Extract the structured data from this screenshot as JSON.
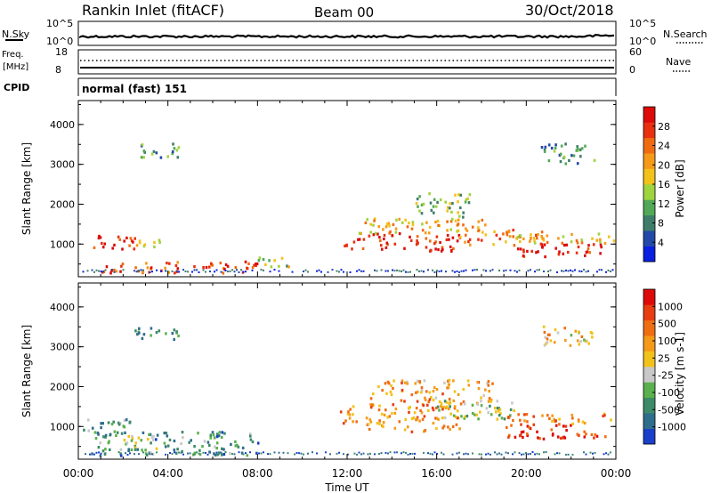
{
  "header": {
    "station": "Rankin Inlet (fitACF)",
    "beam": "Beam 00",
    "date": "30/Oct/2018"
  },
  "noise_panel": {
    "left_label": "N.Sky",
    "right_label": "N.Search",
    "y_ticks_left": [
      "10^5",
      "10^0"
    ],
    "y_ticks_right": [
      "10^5",
      "10^0"
    ]
  },
  "freq_panel": {
    "left_label_1": "Freq.",
    "left_label_2": "[MHz]",
    "right_label": "Nave",
    "y_ticks_left": [
      "18",
      "8"
    ],
    "y_ticks_right": [
      "60",
      "0"
    ]
  },
  "cpid": {
    "label": "CPID",
    "value": "normal (fast) 151"
  },
  "x_axis": {
    "label": "Time UT",
    "ticks": [
      "00:00",
      "04:00",
      "08:00",
      "12:00",
      "16:00",
      "20:00",
      "00:00"
    ]
  },
  "chart_data": [
    {
      "type": "heatmap",
      "name": "power",
      "ylabel": "Slant Range [km]",
      "yticks": [
        1000,
        2000,
        3000,
        4000
      ],
      "ylim": [
        180,
        4600
      ],
      "xlim_hours": [
        0,
        24
      ],
      "colorbar": {
        "label": "Power [dB]",
        "ticks": [
          "4",
          "8",
          "12",
          "16",
          "20",
          "24",
          "28"
        ],
        "colors": [
          "#0a1fe0",
          "#2348a8",
          "#3f7d6a",
          "#52a857",
          "#9ed43d",
          "#f2c21a",
          "#f59a18",
          "#f06a10",
          "#e83010",
          "#dd0a0a"
        ]
      },
      "regions": [
        {
          "h0": 0.2,
          "h1": 2.5,
          "r0": 900,
          "r1": 1250,
          "level": 0.88
        },
        {
          "h0": 2.5,
          "h1": 4.2,
          "r0": 950,
          "r1": 1150,
          "level": 0.55
        },
        {
          "h0": 1.0,
          "h1": 8.0,
          "r0": 300,
          "r1": 600,
          "level": 0.82
        },
        {
          "h0": 8.0,
          "h1": 9.5,
          "r0": 400,
          "r1": 700,
          "level": 0.45
        },
        {
          "h0": 11.8,
          "h1": 17.0,
          "r0": 850,
          "r1": 1300,
          "level": 0.9
        },
        {
          "h0": 12.5,
          "h1": 18.5,
          "r0": 1300,
          "r1": 1700,
          "level": 0.62
        },
        {
          "h0": 15.0,
          "h1": 17.5,
          "r0": 1700,
          "r1": 2300,
          "level": 0.4
        },
        {
          "h0": 17.0,
          "h1": 21.0,
          "r0": 1000,
          "r1": 1400,
          "level": 0.72
        },
        {
          "h0": 19.5,
          "h1": 23.5,
          "r0": 700,
          "r1": 1050,
          "level": 0.95
        },
        {
          "h0": 19.5,
          "h1": 24.0,
          "r0": 1050,
          "r1": 1300,
          "level": 0.6
        },
        {
          "h0": 2.5,
          "h1": 4.5,
          "r0": 3200,
          "r1": 3550,
          "level": 0.3
        },
        {
          "h0": 20.5,
          "h1": 23.0,
          "r0": 3050,
          "r1": 3550,
          "level": 0.3
        }
      ]
    },
    {
      "type": "heatmap",
      "name": "velocity",
      "ylabel": "Slant Range [km]",
      "yticks": [
        1000,
        2000,
        3000,
        4000
      ],
      "ylim": [
        180,
        4600
      ],
      "xlim_hours": [
        0,
        24
      ],
      "colorbar": {
        "label": "Velocity [m s-1]",
        "ticks": [
          "1000",
          "500",
          "100",
          "25",
          "-25",
          "-100",
          "-500",
          "-1000"
        ],
        "colors": [
          "#1a3fc8",
          "#2f6d8c",
          "#3d8a68",
          "#5ab14e",
          "#c8c8c8",
          "#f2c21a",
          "#f59a18",
          "#ef6e12",
          "#e83d10",
          "#dd0a0a"
        ]
      },
      "regions": [
        {
          "h0": 0.2,
          "h1": 2.5,
          "r0": 900,
          "r1": 1250,
          "level": 0.3
        },
        {
          "h0": 0.5,
          "h1": 8.0,
          "r0": 300,
          "r1": 900,
          "level": 0.25
        },
        {
          "h0": 2.0,
          "h1": 3.5,
          "r0": 400,
          "r1": 800,
          "level": 0.42
        },
        {
          "h0": 11.5,
          "h1": 17.0,
          "r0": 900,
          "r1": 1600,
          "level": 0.68
        },
        {
          "h0": 13.0,
          "h1": 18.5,
          "r0": 1600,
          "r1": 2200,
          "level": 0.66
        },
        {
          "h0": 16.0,
          "h1": 19.5,
          "r0": 1200,
          "r1": 1700,
          "level": 0.42
        },
        {
          "h0": 19.0,
          "h1": 23.5,
          "r0": 700,
          "r1": 1100,
          "level": 0.88
        },
        {
          "h0": 19.0,
          "h1": 24.0,
          "r0": 1100,
          "r1": 1350,
          "level": 0.7
        },
        {
          "h0": 2.5,
          "h1": 4.5,
          "r0": 3200,
          "r1": 3550,
          "level": 0.2
        },
        {
          "h0": 20.5,
          "h1": 23.0,
          "r0": 3050,
          "r1": 3550,
          "level": 0.55
        }
      ]
    }
  ]
}
